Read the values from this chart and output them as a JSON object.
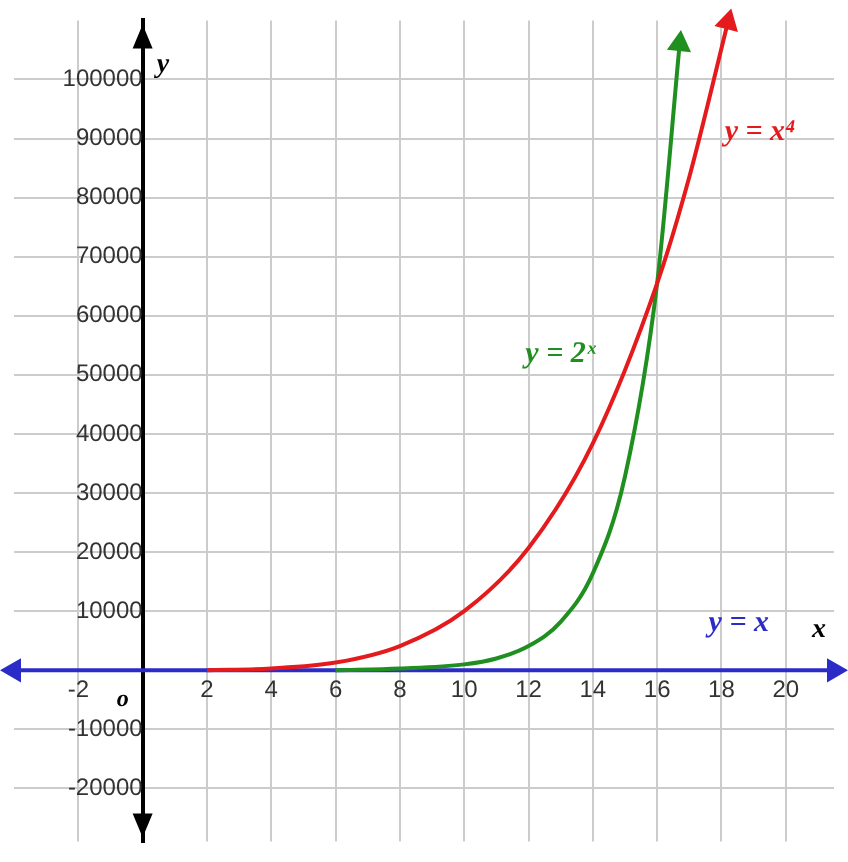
{
  "chart_data": {
    "type": "line",
    "xlabel": "x",
    "ylabel": "y",
    "annotations": [
      "o"
    ],
    "xlim": [
      -4,
      21.5
    ],
    "ylim": [
      -29000,
      110000
    ],
    "xticks": [
      -2,
      2,
      4,
      6,
      8,
      10,
      12,
      14,
      16,
      18,
      20
    ],
    "yticks": [
      -20000,
      -10000,
      10000,
      20000,
      30000,
      40000,
      50000,
      60000,
      70000,
      80000,
      90000,
      100000
    ],
    "grid": true,
    "legend": false,
    "marker": "none",
    "line_style": "solid",
    "series": [
      {
        "name": "y = x",
        "color": "#2b2bc8",
        "marker": "triangle",
        "x": [
          -4,
          21.5
        ],
        "values": [
          0,
          0
        ]
      },
      {
        "name": "y = 2ˣ",
        "color": "#1f8f1f",
        "x": [
          6,
          8,
          10,
          11,
          12,
          13,
          14,
          15,
          16,
          16.7
        ],
        "values": [
          0,
          300,
          1000,
          2000,
          4100,
          8200,
          16400,
          32800,
          65500,
          106000
        ]
      },
      {
        "name": "y = x⁴",
        "color": "#e41a1c",
        "x": [
          2,
          4,
          6,
          8,
          10,
          12,
          14,
          16,
          17,
          18.2
        ],
        "values": [
          0,
          300,
          1300,
          4100,
          10000,
          20700,
          38400,
          65500,
          83500,
          109700
        ]
      }
    ]
  }
}
